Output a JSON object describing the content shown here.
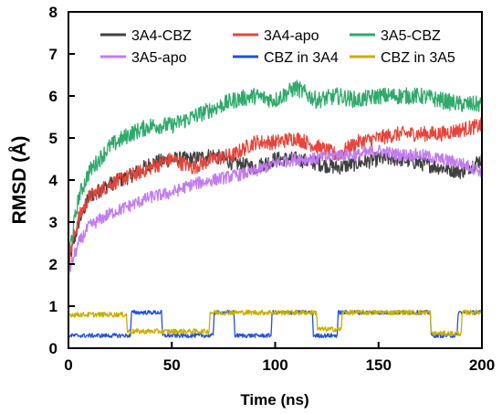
{
  "chart_data": {
    "type": "line",
    "xlabel": "Time (ns)",
    "ylabel": "RMSD (Å)",
    "xlim": [
      0,
      200
    ],
    "ylim": [
      0,
      8
    ],
    "x_ticks": [
      0,
      50,
      100,
      150,
      200
    ],
    "y_ticks": [
      0,
      1,
      2,
      3,
      4,
      5,
      6,
      7,
      8
    ],
    "grid": false,
    "legend_position": "top",
    "series": [
      {
        "name": "3A4-CBZ",
        "color": "#404040",
        "noise": 0.18,
        "x": [
          0,
          5,
          10,
          20,
          30,
          40,
          50,
          60,
          70,
          80,
          90,
          100,
          110,
          120,
          130,
          140,
          150,
          160,
          170,
          180,
          190,
          200
        ],
        "y": [
          2.0,
          3.0,
          3.6,
          3.9,
          4.1,
          4.4,
          4.5,
          4.5,
          4.6,
          4.4,
          4.3,
          4.5,
          4.5,
          4.4,
          4.3,
          4.4,
          4.5,
          4.5,
          4.4,
          4.3,
          4.2,
          4.5
        ]
      },
      {
        "name": "3A4-apo",
        "color": "#e8443a",
        "noise": 0.18,
        "x": [
          0,
          5,
          10,
          20,
          30,
          40,
          50,
          60,
          70,
          80,
          90,
          100,
          110,
          120,
          130,
          140,
          150,
          160,
          170,
          180,
          190,
          200
        ],
        "y": [
          2.1,
          3.1,
          3.6,
          3.9,
          4.1,
          4.3,
          4.5,
          4.3,
          4.5,
          4.6,
          4.9,
          4.9,
          5.0,
          4.8,
          4.6,
          4.9,
          5.0,
          5.1,
          5.1,
          5.1,
          5.2,
          5.3
        ]
      },
      {
        "name": "3A5-CBZ",
        "color": "#2eaa6a",
        "noise": 0.2,
        "x": [
          0,
          5,
          10,
          20,
          30,
          40,
          50,
          60,
          70,
          80,
          90,
          100,
          110,
          120,
          130,
          140,
          150,
          160,
          170,
          180,
          190,
          200
        ],
        "y": [
          2.2,
          3.6,
          4.2,
          4.8,
          5.1,
          5.3,
          5.3,
          5.5,
          5.7,
          5.9,
          6.0,
          5.9,
          6.2,
          5.9,
          6.0,
          5.9,
          6.0,
          6.0,
          6.0,
          5.9,
          5.8,
          5.8
        ]
      },
      {
        "name": "3A5-apo",
        "color": "#c27cf0",
        "noise": 0.15,
        "x": [
          0,
          5,
          10,
          20,
          30,
          40,
          50,
          60,
          70,
          80,
          90,
          100,
          110,
          120,
          130,
          140,
          150,
          160,
          170,
          180,
          190,
          200
        ],
        "y": [
          1.8,
          2.5,
          2.9,
          3.2,
          3.4,
          3.6,
          3.7,
          3.9,
          4.0,
          4.1,
          4.2,
          4.4,
          4.5,
          4.5,
          4.6,
          4.6,
          4.7,
          4.6,
          4.6,
          4.5,
          4.4,
          4.2
        ]
      },
      {
        "name": "CBZ in 3A4",
        "color": "#2350e0",
        "noise": 0.05,
        "x": [
          0,
          30,
          30.5,
          45,
          45.5,
          70,
          70.5,
          80,
          80.5,
          98,
          98.5,
          118,
          118.5,
          130,
          130.5,
          175,
          175.5,
          188,
          188.5,
          200
        ],
        "y": [
          0.3,
          0.3,
          0.85,
          0.85,
          0.3,
          0.3,
          0.85,
          0.85,
          0.3,
          0.3,
          0.85,
          0.85,
          0.3,
          0.3,
          0.85,
          0.85,
          0.3,
          0.3,
          0.85,
          0.85
        ]
      },
      {
        "name": "CBZ in 3A5",
        "color": "#c8b000",
        "noise": 0.06,
        "x": [
          0,
          28,
          28.5,
          68,
          68.5,
          120,
          120.5,
          132,
          132.5,
          175,
          175.5,
          190,
          190.5,
          200
        ],
        "y": [
          0.8,
          0.8,
          0.4,
          0.4,
          0.85,
          0.85,
          0.45,
          0.45,
          0.85,
          0.85,
          0.35,
          0.35,
          0.85,
          0.85
        ]
      }
    ]
  }
}
